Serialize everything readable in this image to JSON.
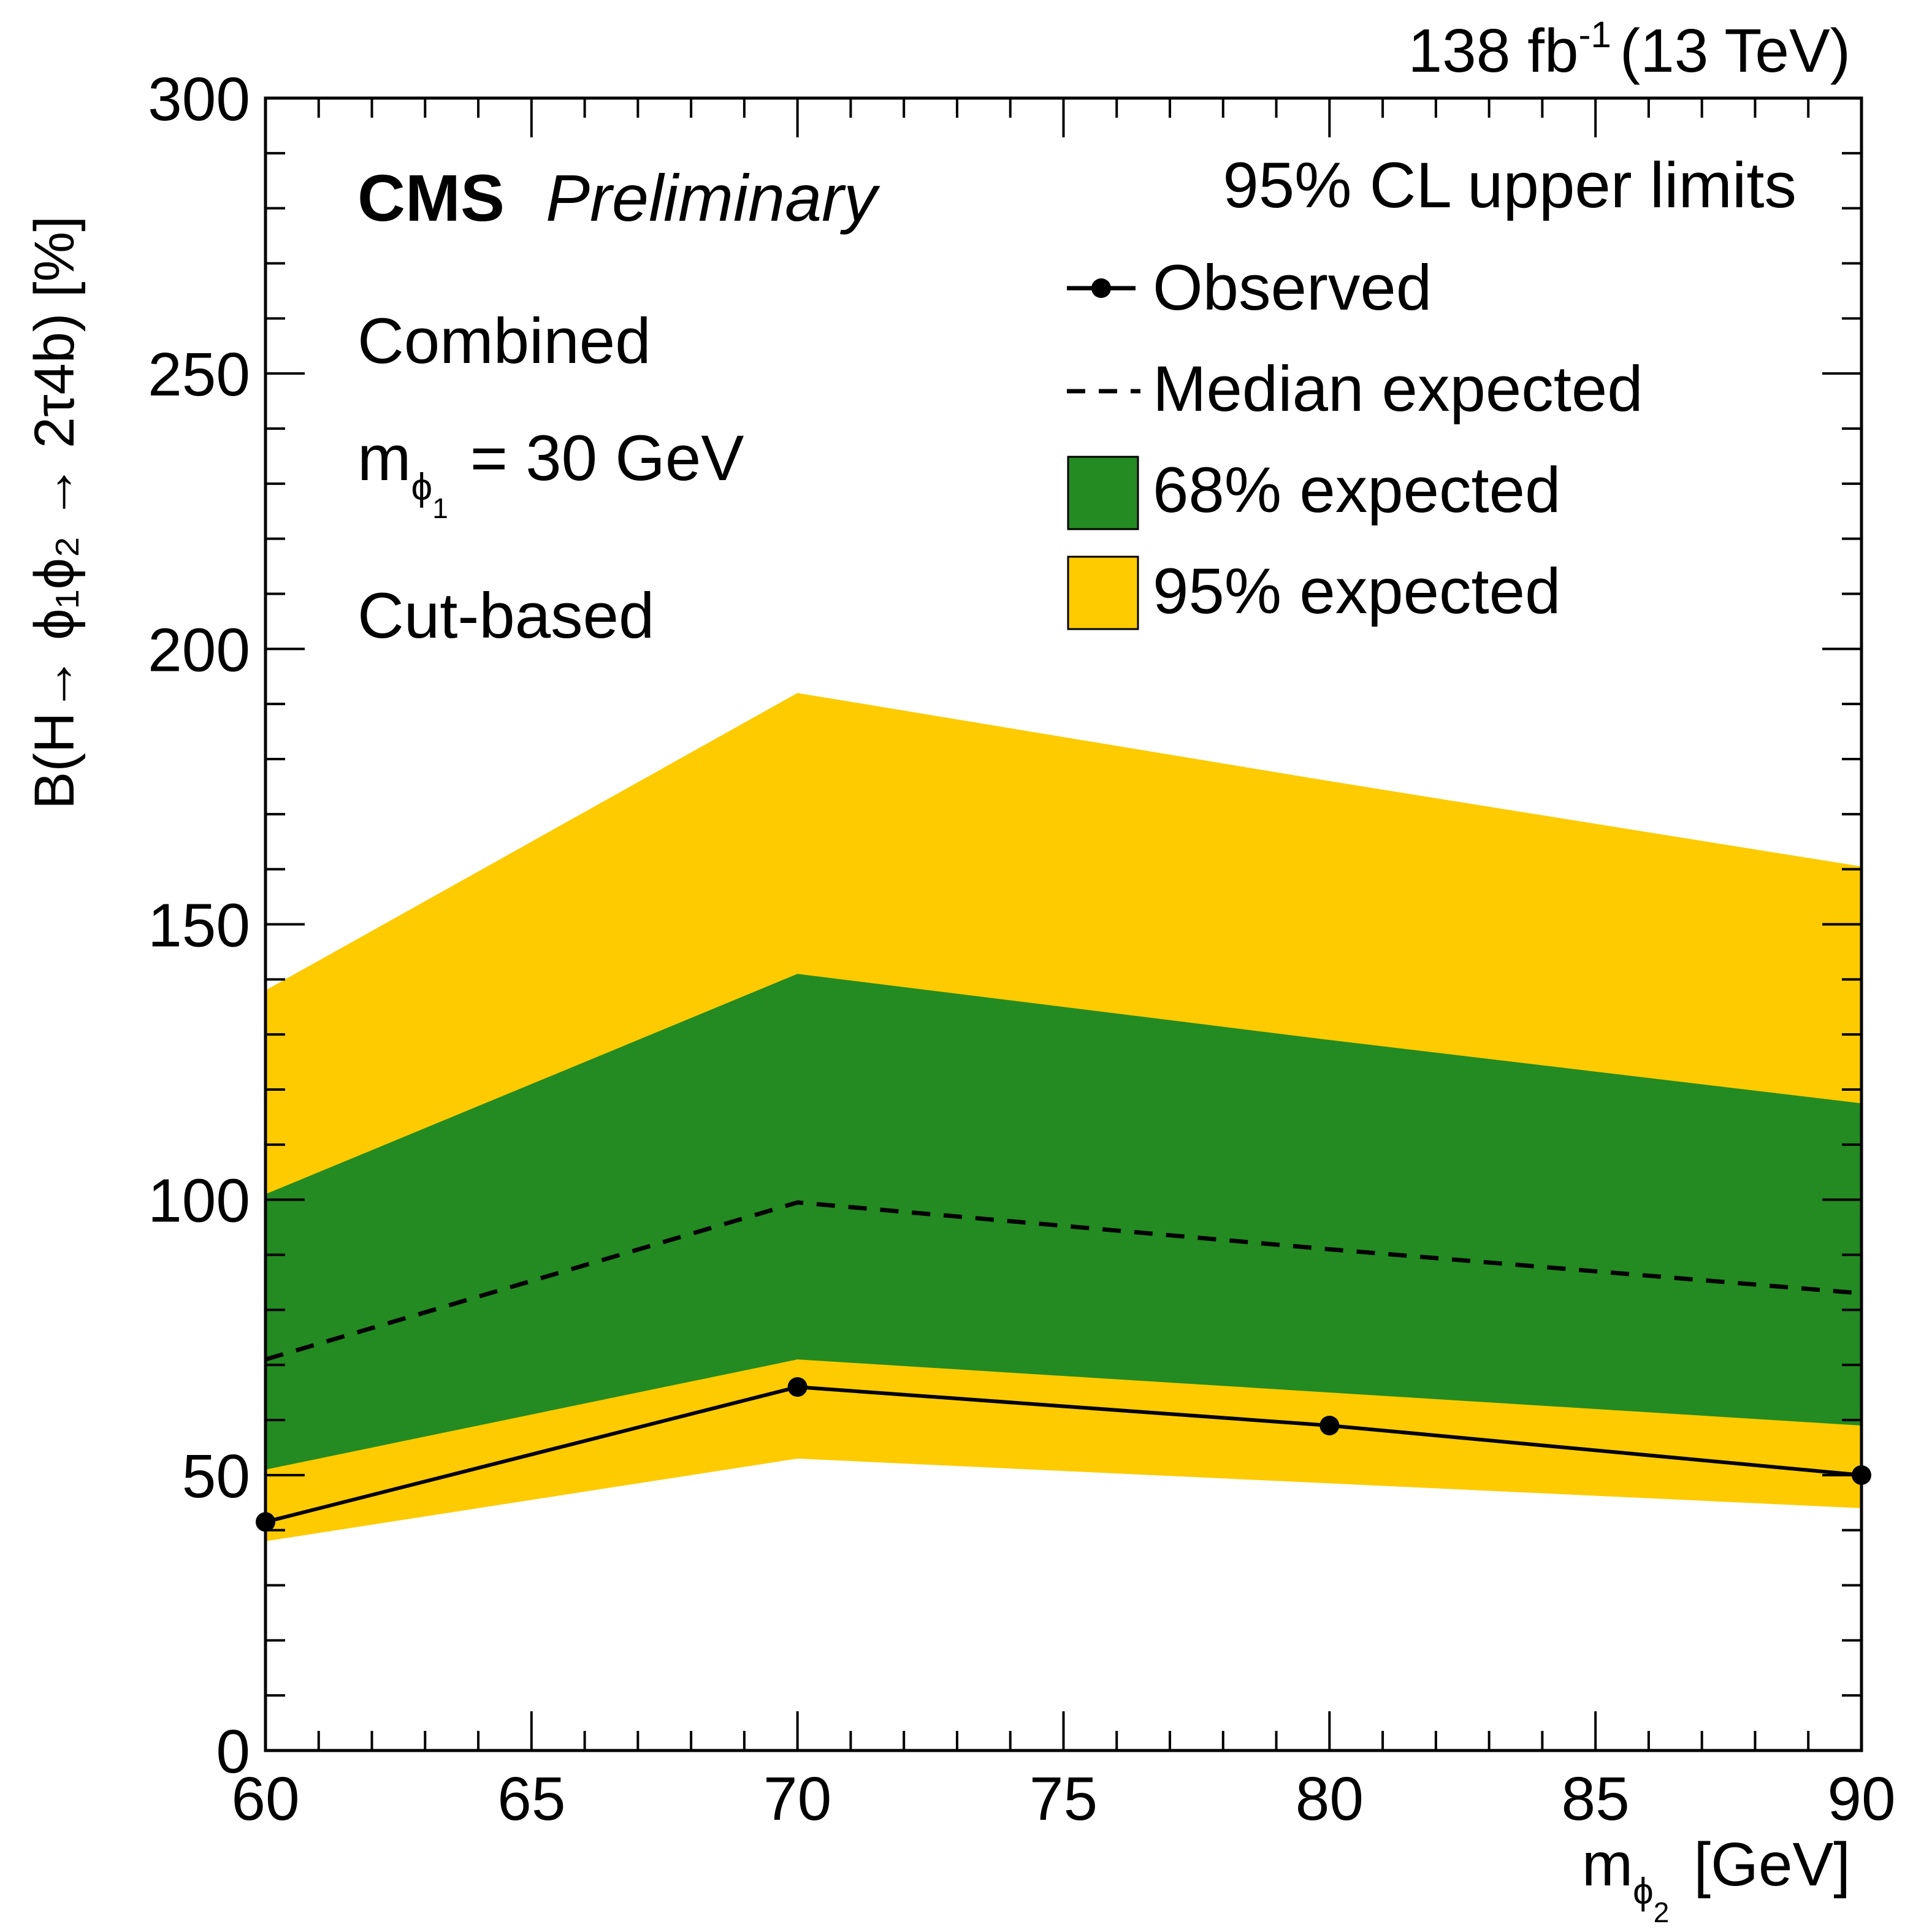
{
  "header": {
    "lumi": "138 fb",
    "lumi_sup": "-1",
    "energy": "(13 TeV)"
  },
  "labels": {
    "cms": "CMS",
    "preliminary": "Preliminary",
    "combined": "Combined",
    "mass_prefix": "m",
    "mass_sub": "ϕ",
    "mass_subsub": "1",
    "mass_value": "= 30 GeV",
    "method": "Cut-based"
  },
  "legend": {
    "title": "95% CL upper limits",
    "observed": "Observed",
    "median": "Median expected",
    "band68": "68% expected",
    "band95": "95% expected"
  },
  "axes": {
    "x_label_main": "m",
    "x_label_sub": "ϕ",
    "x_label_subsub": "2",
    "x_label_unit": "[GeV]",
    "y_label": "B(H→ ϕ₁ϕ₂ → 2τ4b) [%]"
  },
  "colors": {
    "band68": "#238b21",
    "band95": "#fdcb00",
    "line": "#000000"
  },
  "chart_data": {
    "type": "line",
    "x": [
      60,
      70,
      80,
      90
    ],
    "xlim": [
      60,
      90
    ],
    "ylim": [
      0,
      300
    ],
    "x_ticks": [
      60,
      65,
      70,
      75,
      80,
      85,
      90
    ],
    "y_ticks": [
      0,
      50,
      100,
      150,
      200,
      250,
      300
    ],
    "series": [
      {
        "name": "Observed",
        "values": [
          41.5,
          66,
          59,
          50
        ]
      },
      {
        "name": "Median expected",
        "values": [
          71,
          99.5,
          91,
          83
        ]
      },
      {
        "name": "68% expected",
        "low": [
          51,
          71,
          65,
          59
        ],
        "high": [
          101,
          141,
          129,
          117.5
        ]
      },
      {
        "name": "95% expected",
        "low": [
          38,
          53,
          48.5,
          44
        ],
        "high": [
          138,
          192,
          176,
          160.5
        ]
      }
    ],
    "grid": false,
    "legend_position": "top-right"
  }
}
